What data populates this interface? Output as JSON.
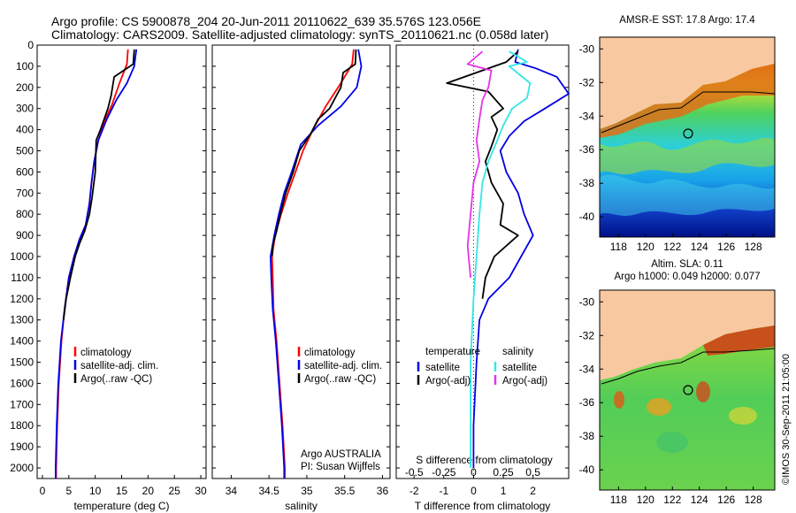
{
  "header": {
    "line1": "Argo profile: CS 5900878_204 20-Jun-2011 20110622_639 35.576S 123.056E",
    "line2": "Climatology: CARS2009. Satellite-adjusted climatology: synTS_20110621.nc (0.058d later)"
  },
  "colors": {
    "climatology": "#ff0000",
    "satellite": "#0000e6",
    "argo": "#000000",
    "sat_diff_S": "#33e6e6",
    "argo_diff_S": "#e633e6",
    "land": "#f8c8a0"
  },
  "chart_data": [
    {
      "type": "line",
      "id": "temperature",
      "xlabel": "temperature (deg C)",
      "ylabel": "",
      "xlim": [
        -1,
        31
      ],
      "ylim": [
        2050,
        0
      ],
      "x_ticks": [
        0,
        5,
        10,
        15,
        20,
        25,
        30
      ],
      "y_ticks": [
        0,
        100,
        200,
        300,
        400,
        500,
        600,
        700,
        800,
        900,
        1000,
        1100,
        1200,
        1300,
        1400,
        1500,
        1600,
        1700,
        1800,
        1900,
        2000
      ],
      "legend_position": "lower-right",
      "series": [
        {
          "name": "climatology",
          "color": "#ff0000",
          "points": [
            [
              16.2,
              20
            ],
            [
              16.0,
              90
            ],
            [
              14.6,
              180
            ],
            [
              13.2,
              280
            ],
            [
              11.8,
              360
            ],
            [
              10.6,
              450
            ],
            [
              9.8,
              550
            ],
            [
              9.3,
              650
            ],
            [
              8.9,
              750
            ],
            [
              8.2,
              850
            ],
            [
              7.0,
              920
            ],
            [
              6.0,
              1000
            ],
            [
              5.0,
              1100
            ],
            [
              4.2,
              1250
            ],
            [
              3.6,
              1400
            ],
            [
              3.1,
              1600
            ],
            [
              2.8,
              1800
            ],
            [
              2.6,
              2000
            ],
            [
              2.6,
              2050
            ]
          ]
        },
        {
          "name": "satellite-adj. clim.",
          "color": "#0000e6",
          "points": [
            [
              17.8,
              20
            ],
            [
              17.4,
              100
            ],
            [
              16.0,
              180
            ],
            [
              14.0,
              260
            ],
            [
              12.2,
              350
            ],
            [
              10.6,
              450
            ],
            [
              9.8,
              550
            ],
            [
              9.3,
              650
            ],
            [
              8.9,
              750
            ],
            [
              8.2,
              850
            ],
            [
              7.0,
              920
            ],
            [
              6.0,
              1000
            ],
            [
              5.0,
              1100
            ],
            [
              4.2,
              1250
            ],
            [
              3.5,
              1400
            ],
            [
              3.0,
              1600
            ],
            [
              2.7,
              1800
            ],
            [
              2.5,
              2000
            ],
            [
              2.5,
              2050
            ]
          ]
        },
        {
          "name": "Argo(..raw -QC)",
          "color": "#000000",
          "points": [
            [
              17.4,
              20
            ],
            [
              17.2,
              90
            ],
            [
              13.6,
              150
            ],
            [
              13.0,
              240
            ],
            [
              12.4,
              300
            ],
            [
              11.0,
              400
            ],
            [
              10.2,
              450
            ],
            [
              10.0,
              600
            ],
            [
              9.4,
              720
            ],
            [
              8.9,
              800
            ],
            [
              8.0,
              880
            ],
            [
              7.0,
              940
            ],
            [
              6.2,
              1000
            ],
            [
              5.3,
              1100
            ],
            [
              4.5,
              1200
            ],
            [
              4.0,
              1300
            ]
          ]
        }
      ],
      "legend": [
        "climatology",
        "satellite-adj. clim.",
        "Argo(..raw -QC)"
      ]
    },
    {
      "type": "line",
      "id": "salinity",
      "xlabel": "salinity",
      "xlim": [
        33.75,
        36.1
      ],
      "ylim": [
        2050,
        0
      ],
      "x_ticks": [
        34,
        34.5,
        35,
        35.5,
        36
      ],
      "legend_position": "lower-right",
      "series": [
        {
          "name": "climatology",
          "color": "#ff0000",
          "points": [
            [
              35.62,
              20
            ],
            [
              35.6,
              90
            ],
            [
              35.45,
              180
            ],
            [
              35.25,
              290
            ],
            [
              35.08,
              400
            ],
            [
              34.95,
              500
            ],
            [
              34.85,
              600
            ],
            [
              34.75,
              700
            ],
            [
              34.66,
              800
            ],
            [
              34.58,
              900
            ],
            [
              34.54,
              1000
            ],
            [
              34.55,
              1100
            ],
            [
              34.56,
              1250
            ],
            [
              34.6,
              1400
            ],
            [
              34.64,
              1600
            ],
            [
              34.68,
              1800
            ],
            [
              34.71,
              2000
            ],
            [
              34.71,
              2050
            ]
          ]
        },
        {
          "name": "satellite-adj. clim.",
          "color": "#0000e6",
          "points": [
            [
              35.68,
              20
            ],
            [
              35.72,
              100
            ],
            [
              35.66,
              200
            ],
            [
              35.45,
              290
            ],
            [
              35.15,
              380
            ],
            [
              34.92,
              470
            ],
            [
              34.8,
              600
            ],
            [
              34.7,
              700
            ],
            [
              34.63,
              800
            ],
            [
              34.57,
              900
            ],
            [
              34.52,
              1000
            ],
            [
              34.53,
              1100
            ],
            [
              34.55,
              1250
            ],
            [
              34.59,
              1400
            ],
            [
              34.63,
              1600
            ],
            [
              34.67,
              1800
            ],
            [
              34.7,
              2000
            ],
            [
              34.7,
              2050
            ]
          ]
        },
        {
          "name": "Argo(..raw -QC)",
          "color": "#000000",
          "points": [
            [
              35.65,
              20
            ],
            [
              35.64,
              90
            ],
            [
              35.48,
              130
            ],
            [
              35.45,
              200
            ],
            [
              35.3,
              300
            ],
            [
              35.15,
              350
            ],
            [
              35.05,
              420
            ],
            [
              34.9,
              500
            ],
            [
              34.82,
              600
            ],
            [
              34.72,
              700
            ],
            [
              34.65,
              800
            ],
            [
              34.6,
              880
            ],
            [
              34.55,
              950
            ],
            [
              34.54,
              1000
            ]
          ]
        }
      ],
      "legend": [
        "climatology",
        "satellite-adj. clim.",
        "Argo(..raw -QC)"
      ],
      "annotation": [
        "Argo AUSTRALIA",
        "PI: Susan Wijffels"
      ]
    },
    {
      "type": "line",
      "id": "difference",
      "xlabel": "T difference from climatology",
      "xlabel_top": "S difference from climatology",
      "xlim": [
        -2.6,
        3.2
      ],
      "ylim": [
        2050,
        0
      ],
      "x_ticks": [
        -2,
        -1,
        0,
        1,
        2
      ],
      "x_ticks_S": [
        "-0.5",
        "-0.25",
        "0",
        "0.25",
        "0.5"
      ],
      "x_ticks_S_values": [
        -2,
        -1,
        0,
        1,
        2
      ],
      "legend_position": "lower-center",
      "legend_groups": [
        {
          "title": "temperature",
          "entries": [
            "satellite",
            "Argo(-adj)"
          ]
        },
        {
          "title": "salinity",
          "entries": [
            "satellite",
            "Argo(-adj)"
          ]
        }
      ],
      "series": [
        {
          "name": "satellite (temperature)",
          "color": "#0000e6",
          "points": [
            [
              1.5,
              20
            ],
            [
              1.4,
              80
            ],
            [
              2.1,
              110
            ],
            [
              2.8,
              150
            ],
            [
              3.2,
              230
            ],
            [
              2.4,
              300
            ],
            [
              1.7,
              360
            ],
            [
              1.2,
              430
            ],
            [
              0.9,
              500
            ],
            [
              1.1,
              600
            ],
            [
              1.5,
              700
            ],
            [
              1.7,
              800
            ],
            [
              2.0,
              900
            ],
            [
              1.6,
              1000
            ],
            [
              1.2,
              1100
            ],
            [
              0.5,
              1200
            ],
            [
              0.2,
              1300
            ],
            [
              0.1,
              1500
            ],
            [
              0.0,
              1800
            ],
            [
              0.0,
              2000
            ]
          ]
        },
        {
          "name": "Argo(-adj) (temperature)",
          "color": "#000000",
          "points": [
            [
              1.5,
              30
            ],
            [
              1.1,
              80
            ],
            [
              -0.9,
              180
            ],
            [
              0.5,
              220
            ],
            [
              1.0,
              300
            ],
            [
              0.6,
              340
            ],
            [
              0.8,
              400
            ],
            [
              0.6,
              480
            ],
            [
              0.4,
              550
            ],
            [
              0.6,
              650
            ],
            [
              1.0,
              750
            ],
            [
              0.9,
              850
            ],
            [
              1.5,
              900
            ],
            [
              0.7,
              1000
            ],
            [
              0.4,
              1100
            ],
            [
              0.3,
              1200
            ]
          ]
        },
        {
          "name": "satellite (salinity)",
          "color": "#33e6e6",
          "points": [
            [
              1.2,
              30
            ],
            [
              1.8,
              80
            ],
            [
              1.2,
              100
            ],
            [
              1.9,
              180
            ],
            [
              1.8,
              250
            ],
            [
              1.3,
              300
            ],
            [
              1.0,
              380
            ],
            [
              0.8,
              450
            ],
            [
              0.5,
              550
            ],
            [
              0.3,
              650
            ],
            [
              0.2,
              800
            ],
            [
              0.1,
              1000
            ],
            [
              0.0,
              1200
            ],
            [
              -0.1,
              1500
            ],
            [
              -0.1,
              1800
            ],
            [
              -0.1,
              2000
            ]
          ]
        },
        {
          "name": "Argo(-adj) (salinity)",
          "color": "#e633e6",
          "points": [
            [
              0.3,
              30
            ],
            [
              -0.2,
              90
            ],
            [
              0.6,
              120
            ],
            [
              0.5,
              200
            ],
            [
              0.3,
              260
            ],
            [
              0.2,
              350
            ],
            [
              0.1,
              450
            ],
            [
              0.2,
              550
            ],
            [
              0.0,
              650
            ],
            [
              -0.1,
              800
            ],
            [
              -0.2,
              950
            ],
            [
              -0.1,
              1100
            ]
          ]
        }
      ]
    }
  ],
  "maps": {
    "top": {
      "title": "AMSR-E SST: 17.8 Argo: 17.4",
      "x_ticks": [
        118,
        120,
        122,
        124,
        126,
        128
      ],
      "y_ticks": [
        -30,
        -32,
        -34,
        -36,
        -38,
        -40
      ]
    },
    "bottom": {
      "title_line1": "Altim. SLA: 0.11",
      "title_line2": "Argo h1000: 0.049 h2000: 0.077",
      "x_ticks": [
        118,
        120,
        122,
        124,
        126,
        128
      ],
      "y_ticks": [
        -30,
        -32,
        -34,
        -36,
        -38,
        -40
      ]
    },
    "float_position": {
      "lon": 123.056,
      "lat": -35.576
    }
  },
  "credit": "©IMOS 30-Sep-2011 21:05:00"
}
